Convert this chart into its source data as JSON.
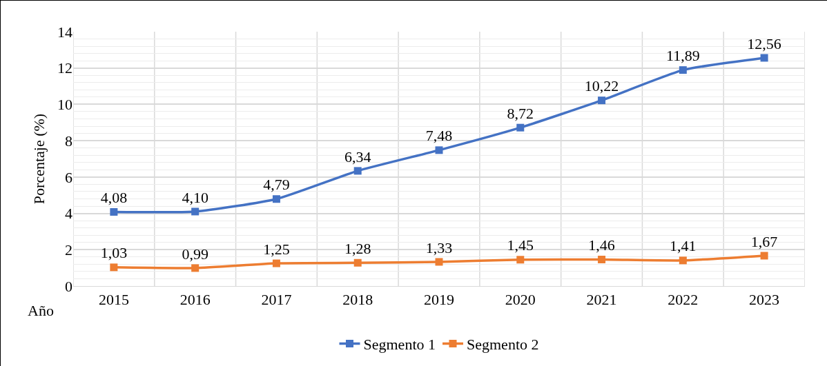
{
  "chart_data": {
    "type": "line",
    "ylabel": "Porcentaje (%)",
    "xlabel": "Año",
    "categories": [
      "2015",
      "2016",
      "2017",
      "2018",
      "2019",
      "2020",
      "2021",
      "2022",
      "2023"
    ],
    "series": [
      {
        "name": "Segmento 1",
        "color": "#4472c4",
        "values": [
          4.08,
          4.1,
          4.79,
          6.34,
          7.48,
          8.72,
          10.22,
          11.89,
          12.56
        ],
        "value_labels": [
          "4,08",
          "4,10",
          "4,79",
          "6,34",
          "7,48",
          "8,72",
          "10,22",
          "11,89",
          "12,56"
        ]
      },
      {
        "name": "Segmento 2",
        "color": "#ed7d31",
        "values": [
          1.03,
          0.99,
          1.25,
          1.28,
          1.33,
          1.45,
          1.46,
          1.41,
          1.67
        ],
        "value_labels": [
          "1,03",
          "0,99",
          "1,25",
          "1,28",
          "1,33",
          "1,45",
          "1,46",
          "1,41",
          "1,67"
        ]
      }
    ],
    "ylim": [
      0,
      14
    ],
    "yticks": [
      0,
      2,
      4,
      6,
      8,
      10,
      12,
      14
    ],
    "grid": true,
    "legend": "bottom",
    "marker": "square",
    "line_style": "solid"
  }
}
